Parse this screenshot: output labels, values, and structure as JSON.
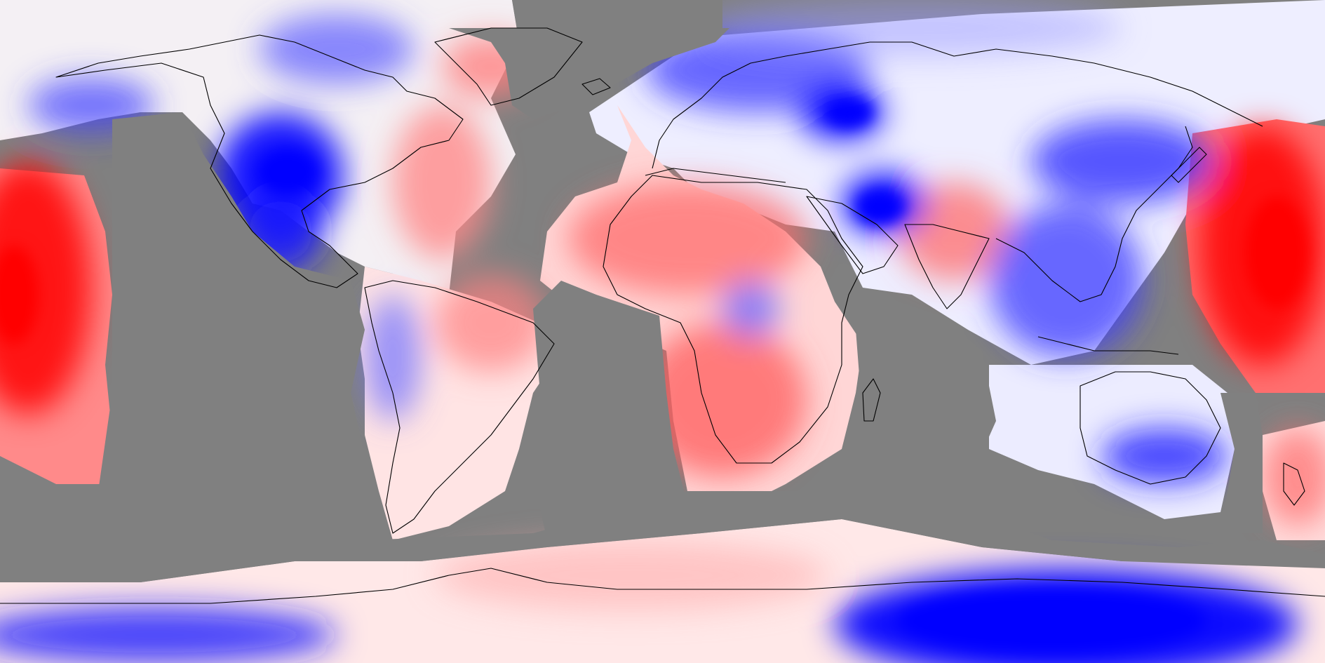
{
  "map": {
    "projection": "equirectangular",
    "view": "global",
    "lon_range": [
      -180,
      180
    ],
    "lat_range": [
      -90,
      90
    ],
    "style": "anomaly-heatmap",
    "colors": {
      "no_data": "#808080",
      "strong_warm": "#ff0000",
      "warm": "#ff6b6b",
      "mild_warm": "#ffb3b3",
      "neutral": "#ffffff",
      "mild_cool": "#c9ccff",
      "cool": "#6b6bff",
      "strong_cool": "#0000ff",
      "coastline": "#000000"
    },
    "legend": null,
    "title": ""
  }
}
